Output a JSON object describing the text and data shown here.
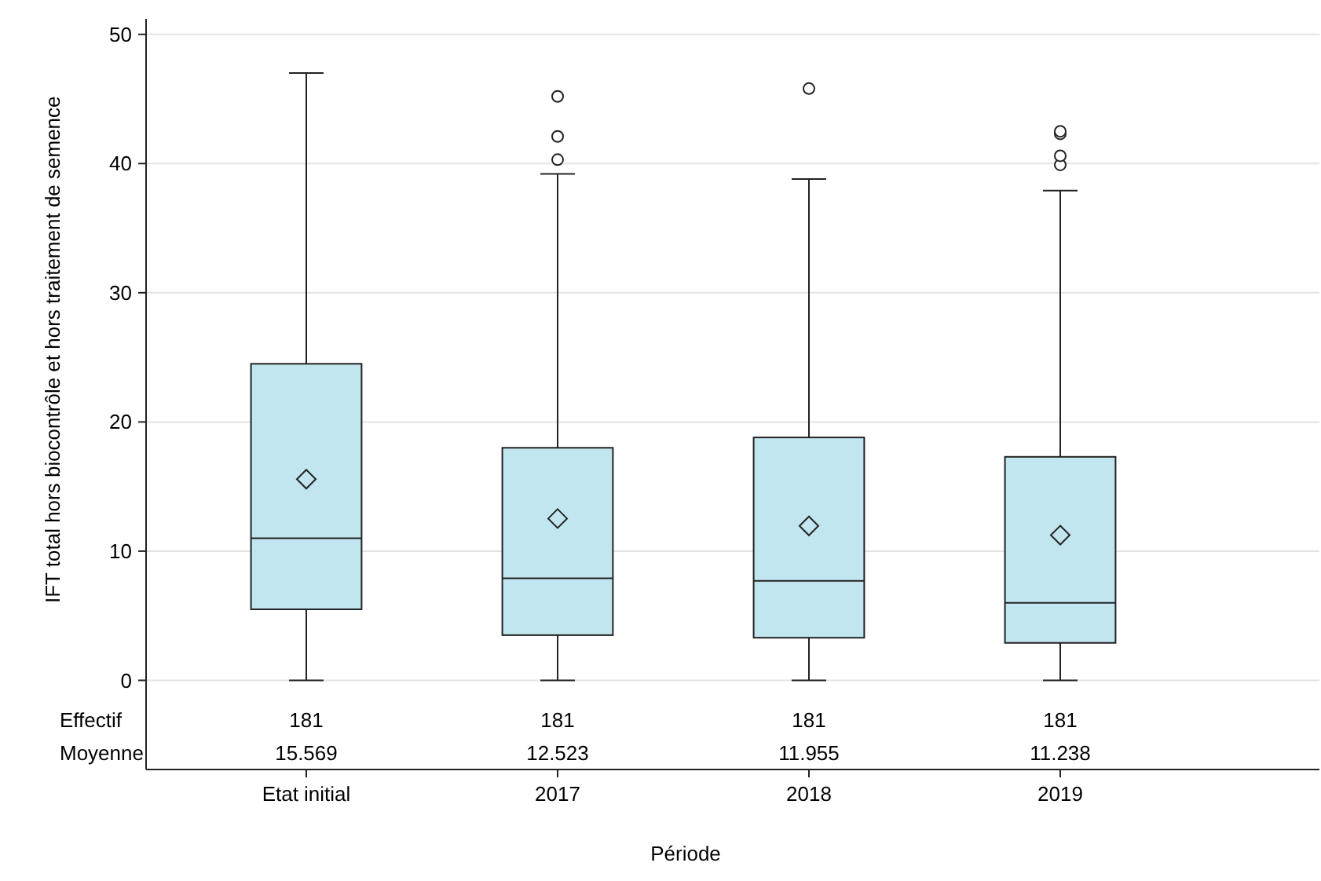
{
  "chart_data": {
    "type": "box",
    "xlabel": "Période",
    "ylabel": "IFT total hors biocontrôle et hors traitement de semence",
    "categories": [
      "Etat initial",
      "2017",
      "2018",
      "2019"
    ],
    "color": "#c2e6f0",
    "boxes": [
      {
        "low": 0,
        "q1": 5.5,
        "median": 11,
        "q3": 24.5,
        "high": 47,
        "mean": 15.569
      },
      {
        "low": 0,
        "q1": 3.5,
        "median": 7.9,
        "q3": 18,
        "high": 39.2,
        "mean": 12.523,
        "outliers": [
          40.3,
          42.1,
          45.2
        ]
      },
      {
        "low": 0,
        "q1": 3.3,
        "median": 7.7,
        "q3": 18.8,
        "high": 38.8,
        "mean": 11.955,
        "outliers": [
          45.8
        ]
      },
      {
        "low": 0,
        "q1": 2.9,
        "median": 6,
        "q3": 17.3,
        "high": 37.9,
        "mean": 11.238,
        "outliers": [
          39.9,
          40.6,
          42.3,
          42.5
        ]
      }
    ],
    "ylim": [
      -6.9,
      51.2
    ],
    "yticks": [
      0,
      10,
      20,
      30,
      40,
      50
    ],
    "grid": "y",
    "marker": "diamond",
    "value_labels": [
      "15.569",
      "12.523",
      "11.955",
      "11.238"
    ],
    "annotations": [
      "Effectif",
      "Moyenne",
      "181",
      "181",
      "181",
      "181"
    ]
  }
}
